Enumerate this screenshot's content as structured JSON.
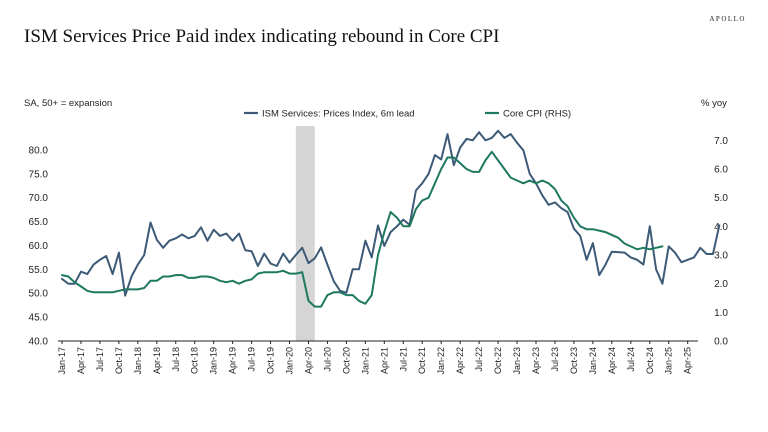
{
  "brand": "APOLLO",
  "chart_data": {
    "type": "line",
    "title": "ISM Services Price Paid index indicating rebound in Core CPI",
    "subtitle": "SA, 50+ = expansion",
    "y_right_label": "% yoy",
    "ylim_left": [
      40,
      85
    ],
    "ylim_right": [
      0,
      7.5
    ],
    "left_ticks": [
      "40.0",
      "45.0",
      "50.0",
      "55.0",
      "60.0",
      "65.0",
      "70.0",
      "75.0",
      "80.0"
    ],
    "right_ticks": [
      "0.0",
      "1.0",
      "2.0",
      "3.0",
      "4.0",
      "5.0",
      "6.0",
      "7.0"
    ],
    "x_ticks": [
      "Jan-17",
      "Apr-17",
      "Jul-17",
      "Oct-17",
      "Jan-18",
      "Apr-18",
      "Jul-18",
      "Oct-18",
      "Jan-19",
      "Apr-19",
      "Jul-19",
      "Oct-19",
      "Jan-20",
      "Apr-20",
      "Jul-20",
      "Oct-20",
      "Jan-21",
      "Apr-21",
      "Jul-21",
      "Oct-21",
      "Jan-22",
      "Apr-22",
      "Jul-22",
      "Oct-22",
      "Jan-23",
      "Apr-23",
      "Jul-23",
      "Oct-23",
      "Jan-24",
      "Apr-24",
      "Jul-24",
      "Oct-24",
      "Jan-25",
      "Apr-25"
    ],
    "shaded_region": {
      "start_index": 37,
      "end_index": 40
    },
    "series": [
      {
        "name": "ISM Services: Prices Index, 6m lead",
        "axis": "left",
        "color": "#3d5a76",
        "values": [
          53,
          52,
          52,
          54.5,
          54,
          56,
          57,
          57.8,
          54,
          58.5,
          49.5,
          53.5,
          56,
          58,
          64.8,
          61.2,
          59.5,
          61,
          61.5,
          62.3,
          61.5,
          62,
          63.8,
          61,
          63.3,
          62,
          62.5,
          61,
          62.5,
          59,
          58.8,
          55.7,
          58.3,
          56.2,
          55.7,
          58.3,
          56.4,
          58,
          59.5,
          56.3,
          57.3,
          59.6,
          56,
          52.5,
          50.5,
          50.1,
          55,
          55,
          61,
          57.5,
          64.2,
          59.9,
          62.8,
          64,
          65.4,
          64.3,
          71.5,
          73,
          75,
          78.9,
          78,
          83.3,
          76.8,
          80.5,
          82.3,
          82,
          83.7,
          82,
          82.5,
          84,
          82.5,
          83.3,
          81.5,
          79.9,
          75,
          73,
          70.5,
          68.5,
          69,
          67.8,
          67,
          63.5,
          62,
          57,
          60.5,
          53.8,
          56,
          58.7,
          58.6,
          58.5,
          57.5,
          57,
          56,
          64,
          55,
          52,
          59.8,
          58.5,
          56.5,
          57,
          57.5,
          59.5,
          58.2,
          58.2,
          64.2
        ]
      },
      {
        "name": "Core CPI (RHS)",
        "axis": "right",
        "color": "#1f7860",
        "values": [
          2.3,
          2.25,
          2.05,
          1.9,
          1.75,
          1.7,
          1.7,
          1.7,
          1.7,
          1.75,
          1.8,
          1.8,
          1.8,
          1.85,
          2.1,
          2.1,
          2.25,
          2.25,
          2.3,
          2.3,
          2.2,
          2.2,
          2.25,
          2.25,
          2.2,
          2.1,
          2.05,
          2.1,
          2.0,
          2.1,
          2.15,
          2.35,
          2.4,
          2.4,
          2.4,
          2.45,
          2.35,
          2.35,
          2.4,
          1.4,
          1.2,
          1.2,
          1.6,
          1.7,
          1.7,
          1.6,
          1.6,
          1.4,
          1.3,
          1.6,
          3.0,
          3.8,
          4.5,
          4.3,
          4.0,
          4.0,
          4.6,
          4.9,
          5.0,
          5.5,
          6.0,
          6.4,
          6.4,
          6.2,
          6.0,
          5.9,
          5.9,
          6.3,
          6.6,
          6.3,
          6.0,
          5.7,
          5.6,
          5.5,
          5.6,
          5.5,
          5.6,
          5.5,
          5.3,
          4.9,
          4.7,
          4.3,
          4.0,
          3.9,
          3.9,
          3.85,
          3.8,
          3.7,
          3.6,
          3.4,
          3.3,
          3.2,
          3.25,
          3.2,
          3.25,
          3.3
        ]
      }
    ]
  }
}
